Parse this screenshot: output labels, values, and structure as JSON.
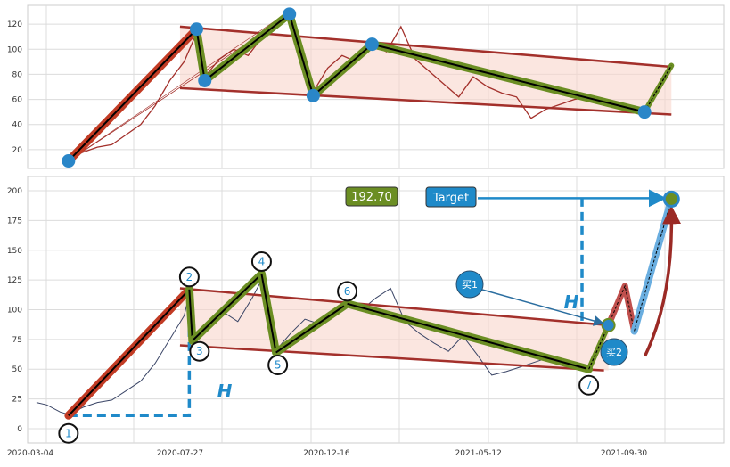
{
  "chart_data": [
    {
      "type": "line",
      "panel": "upper",
      "ylim": [
        5,
        135
      ],
      "y_ticks": [
        20,
        40,
        60,
        80,
        100,
        120
      ],
      "grid": true,
      "pivots": [
        {
          "x": "2020-04-10",
          "y": 11
        },
        {
          "x": "2020-08-12",
          "y": 116
        },
        {
          "x": "2020-08-20",
          "y": 75
        },
        {
          "x": "2020-11-10",
          "y": 128
        },
        {
          "x": "2020-12-03",
          "y": 63
        },
        {
          "x": "2021-01-29",
          "y": 104
        },
        {
          "x": "2021-10-20",
          "y": 50
        }
      ],
      "projection": {
        "from": {
          "x": "2021-10-20",
          "y": 50
        },
        "to": {
          "x": "2021-11-15",
          "y": 87
        }
      },
      "channel": {
        "upper": [
          {
            "x": "2020-07-27",
            "y": 118
          },
          {
            "x": "2021-11-15",
            "y": 86
          }
        ],
        "lower": [
          {
            "x": "2020-07-27",
            "y": 69
          },
          {
            "x": "2021-11-15",
            "y": 48
          }
        ]
      },
      "price": [
        {
          "x": "2020-04-10",
          "y": 12
        },
        {
          "x": "2020-04-24",
          "y": 18
        },
        {
          "x": "2020-05-08",
          "y": 22
        },
        {
          "x": "2020-05-22",
          "y": 24
        },
        {
          "x": "2020-06-05",
          "y": 32
        },
        {
          "x": "2020-06-19",
          "y": 40
        },
        {
          "x": "2020-07-03",
          "y": 55
        },
        {
          "x": "2020-07-17",
          "y": 75
        },
        {
          "x": "2020-07-31",
          "y": 90
        },
        {
          "x": "2020-08-12",
          "y": 113
        },
        {
          "x": "2020-08-20",
          "y": 78
        },
        {
          "x": "2020-09-03",
          "y": 92
        },
        {
          "x": "2020-09-17",
          "y": 100
        },
        {
          "x": "2020-10-01",
          "y": 95
        },
        {
          "x": "2020-10-15",
          "y": 110
        },
        {
          "x": "2020-10-29",
          "y": 118
        },
        {
          "x": "2020-11-10",
          "y": 125
        },
        {
          "x": "2020-11-20",
          "y": 92
        },
        {
          "x": "2020-12-03",
          "y": 66
        },
        {
          "x": "2020-12-17",
          "y": 85
        },
        {
          "x": "2020-12-31",
          "y": 95
        },
        {
          "x": "2021-01-14",
          "y": 90
        },
        {
          "x": "2021-01-29",
          "y": 104
        },
        {
          "x": "2021-02-12",
          "y": 98
        },
        {
          "x": "2021-02-26",
          "y": 118
        },
        {
          "x": "2021-03-12",
          "y": 92
        },
        {
          "x": "2021-03-26",
          "y": 82
        },
        {
          "x": "2021-04-09",
          "y": 72
        },
        {
          "x": "2021-04-23",
          "y": 62
        },
        {
          "x": "2021-05-07",
          "y": 78
        },
        {
          "x": "2021-05-21",
          "y": 70
        },
        {
          "x": "2021-06-04",
          "y": 65
        },
        {
          "x": "2021-06-18",
          "y": 62
        },
        {
          "x": "2021-07-02",
          "y": 45
        },
        {
          "x": "2021-07-16",
          "y": 52
        },
        {
          "x": "2021-07-30",
          "y": 56
        },
        {
          "x": "2021-08-13",
          "y": 60
        },
        {
          "x": "2021-08-27",
          "y": 62
        },
        {
          "x": "2021-09-10",
          "y": 57
        },
        {
          "x": "2021-09-24",
          "y": 54
        },
        {
          "x": "2021-10-08",
          "y": 52
        },
        {
          "x": "2021-10-20",
          "y": 50
        }
      ]
    },
    {
      "type": "line",
      "panel": "lower",
      "ylim": [
        -12,
        212
      ],
      "y_ticks": [
        0,
        25,
        50,
        75,
        100,
        125,
        150,
        175,
        200
      ],
      "x_ticks": [
        "2020-03-04",
        "2020-07-27",
        "2020-12-16",
        "2021-05-12",
        "2021-09-30"
      ],
      "grid": true,
      "wave_points": [
        {
          "label": "1",
          "x": "2020-04-10",
          "y": 11
        },
        {
          "label": "2",
          "x": "2020-08-05",
          "y": 117
        },
        {
          "label": "3",
          "x": "2020-08-08",
          "y": 74
        },
        {
          "label": "4",
          "x": "2020-10-14",
          "y": 130
        },
        {
          "label": "5",
          "x": "2020-10-28",
          "y": 64
        },
        {
          "label": "6",
          "x": "2021-01-05",
          "y": 105
        },
        {
          "label": "7",
          "x": "2021-08-27",
          "y": 50
        }
      ],
      "buy_points": [
        {
          "label": "买1",
          "x": "2021-09-15",
          "y": 87
        },
        {
          "label": "买2",
          "x": "2021-10-10",
          "y": 82
        }
      ],
      "pullback_peak": {
        "x": "2021-10-01",
        "y": 120
      },
      "target_value": "192.70",
      "target_label": "Target",
      "target_point": {
        "x": "2021-11-15",
        "y": 193
      },
      "height_marker": "H",
      "channel": {
        "upper": [
          {
            "x": "2020-07-27",
            "y": 118
          },
          {
            "x": "2021-09-15",
            "y": 87
          }
        ],
        "lower": [
          {
            "x": "2020-07-27",
            "y": 70
          },
          {
            "x": "2021-09-15",
            "y": 49
          }
        ]
      },
      "price": [
        {
          "x": "2020-03-10",
          "y": 22
        },
        {
          "x": "2020-03-20",
          "y": 20
        },
        {
          "x": "2020-04-02",
          "y": 14
        },
        {
          "x": "2020-04-10",
          "y": 12
        },
        {
          "x": "2020-04-24",
          "y": 18
        },
        {
          "x": "2020-05-08",
          "y": 22
        },
        {
          "x": "2020-05-22",
          "y": 24
        },
        {
          "x": "2020-06-05",
          "y": 32
        },
        {
          "x": "2020-06-19",
          "y": 40
        },
        {
          "x": "2020-07-03",
          "y": 55
        },
        {
          "x": "2020-07-17",
          "y": 75
        },
        {
          "x": "2020-07-31",
          "y": 95
        },
        {
          "x": "2020-08-05",
          "y": 113
        },
        {
          "x": "2020-08-08",
          "y": 78
        },
        {
          "x": "2020-08-24",
          "y": 85
        },
        {
          "x": "2020-09-07",
          "y": 98
        },
        {
          "x": "2020-09-21",
          "y": 90
        },
        {
          "x": "2020-10-05",
          "y": 110
        },
        {
          "x": "2020-10-14",
          "y": 125
        },
        {
          "x": "2020-10-28",
          "y": 66
        },
        {
          "x": "2020-11-11",
          "y": 80
        },
        {
          "x": "2020-11-25",
          "y": 92
        },
        {
          "x": "2020-12-09",
          "y": 88
        },
        {
          "x": "2020-12-23",
          "y": 98
        },
        {
          "x": "2021-01-05",
          "y": 103
        },
        {
          "x": "2021-01-19",
          "y": 100
        },
        {
          "x": "2021-02-02",
          "y": 110
        },
        {
          "x": "2021-02-16",
          "y": 118
        },
        {
          "x": "2021-03-02",
          "y": 90
        },
        {
          "x": "2021-03-16",
          "y": 80
        },
        {
          "x": "2021-03-30",
          "y": 72
        },
        {
          "x": "2021-04-13",
          "y": 65
        },
        {
          "x": "2021-04-27",
          "y": 78
        },
        {
          "x": "2021-05-11",
          "y": 62
        },
        {
          "x": "2021-05-25",
          "y": 45
        },
        {
          "x": "2021-06-08",
          "y": 48
        },
        {
          "x": "2021-06-22",
          "y": 52
        },
        {
          "x": "2021-07-06",
          "y": 56
        },
        {
          "x": "2021-07-20",
          "y": 60
        },
        {
          "x": "2021-08-03",
          "y": 58
        },
        {
          "x": "2021-08-17",
          "y": 54
        },
        {
          "x": "2021-08-27",
          "y": 51
        }
      ]
    }
  ]
}
